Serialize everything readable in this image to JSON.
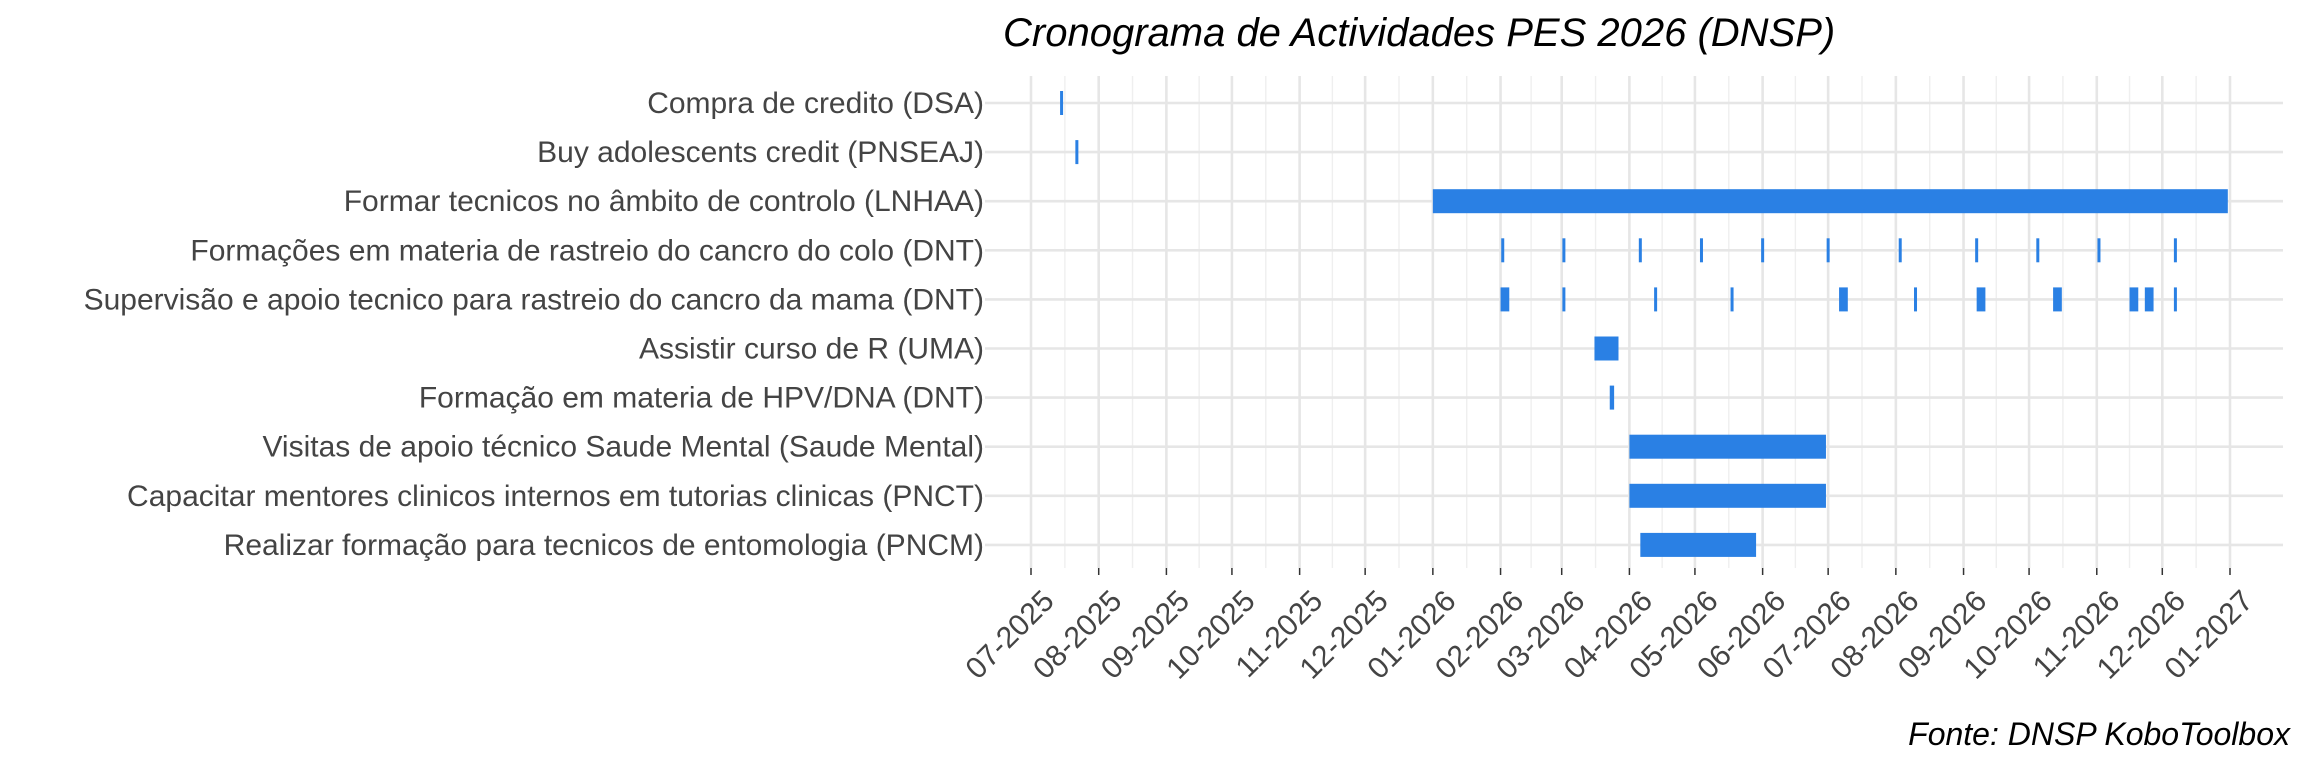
{
  "chart_data": {
    "type": "gantt",
    "title": "Cronograma de Actividades PES 2026 (DNSP)",
    "caption": "Fonte: DNSP KoboToolbox",
    "xlabel": "",
    "ylabel": "",
    "bar_color": "#2a80e4",
    "grid": true,
    "x_ticks": [
      "07-2025",
      "08-2025",
      "09-2025",
      "10-2025",
      "11-2025",
      "12-2025",
      "01-2026",
      "02-2026",
      "03-2026",
      "04-2026",
      "05-2026",
      "06-2026",
      "07-2026",
      "08-2026",
      "09-2026",
      "10-2026",
      "11-2026",
      "12-2026",
      "01-2027"
    ],
    "xlim": [
      "2025-07-01",
      "2027-01-01"
    ],
    "categories": [
      "Compra de credito (DSA)",
      "Buy adolescents credit (PNSEAJ)",
      "Formar tecnicos no âmbito de controlo (LNHAA)",
      "Formações em materia de rastreio do cancro do colo (DNT)",
      "Supervisão e apoio tecnico para rastreio do cancro da mama (DNT)",
      "Assistir curso de R (UMA)",
      "Formação em materia de HPV/DNA (DNT)",
      "Visitas de apoio técnico Saude Mental (Saude Mental)",
      "Capacitar mentores clinicos internos em tutorias clinicas (PNCT)",
      "Realizar formação para tecnicos de entomologia (PNCM)"
    ],
    "tasks": [
      {
        "activity": 0,
        "start": "2025-07-15",
        "end": "2025-07-15"
      },
      {
        "activity": 1,
        "start": "2025-07-22",
        "end": "2025-07-22"
      },
      {
        "activity": 2,
        "start": "2026-01-01",
        "end": "2026-12-31"
      },
      {
        "activity": 3,
        "start": "2026-02-02",
        "end": "2026-02-02"
      },
      {
        "activity": 3,
        "start": "2026-03-02",
        "end": "2026-03-02"
      },
      {
        "activity": 3,
        "start": "2026-04-06",
        "end": "2026-04-06"
      },
      {
        "activity": 3,
        "start": "2026-05-04",
        "end": "2026-05-04"
      },
      {
        "activity": 3,
        "start": "2026-06-01",
        "end": "2026-06-01"
      },
      {
        "activity": 3,
        "start": "2026-07-01",
        "end": "2026-07-01"
      },
      {
        "activity": 3,
        "start": "2026-08-03",
        "end": "2026-08-03"
      },
      {
        "activity": 3,
        "start": "2026-09-07",
        "end": "2026-09-07"
      },
      {
        "activity": 3,
        "start": "2026-10-05",
        "end": "2026-10-05"
      },
      {
        "activity": 3,
        "start": "2026-11-02",
        "end": "2026-11-02"
      },
      {
        "activity": 3,
        "start": "2026-12-07",
        "end": "2026-12-07"
      },
      {
        "activity": 4,
        "start": "2026-02-01",
        "end": "2026-02-05"
      },
      {
        "activity": 4,
        "start": "2026-03-02",
        "end": "2026-03-02"
      },
      {
        "activity": 4,
        "start": "2026-04-13",
        "end": "2026-04-13"
      },
      {
        "activity": 4,
        "start": "2026-05-18",
        "end": "2026-05-18"
      },
      {
        "activity": 4,
        "start": "2026-07-06",
        "end": "2026-07-10"
      },
      {
        "activity": 4,
        "start": "2026-08-10",
        "end": "2026-08-10"
      },
      {
        "activity": 4,
        "start": "2026-09-07",
        "end": "2026-09-11"
      },
      {
        "activity": 4,
        "start": "2026-10-12",
        "end": "2026-10-16"
      },
      {
        "activity": 4,
        "start": "2026-11-16",
        "end": "2026-11-20"
      },
      {
        "activity": 4,
        "start": "2026-11-23",
        "end": "2026-11-27"
      },
      {
        "activity": 4,
        "start": "2026-12-07",
        "end": "2026-12-07"
      },
      {
        "activity": 5,
        "start": "2026-03-16",
        "end": "2026-03-27"
      },
      {
        "activity": 6,
        "start": "2026-03-23",
        "end": "2026-03-25"
      },
      {
        "activity": 7,
        "start": "2026-04-01",
        "end": "2026-06-30"
      },
      {
        "activity": 8,
        "start": "2026-04-01",
        "end": "2026-06-30"
      },
      {
        "activity": 9,
        "start": "2026-04-06",
        "end": "2026-05-29"
      }
    ]
  }
}
